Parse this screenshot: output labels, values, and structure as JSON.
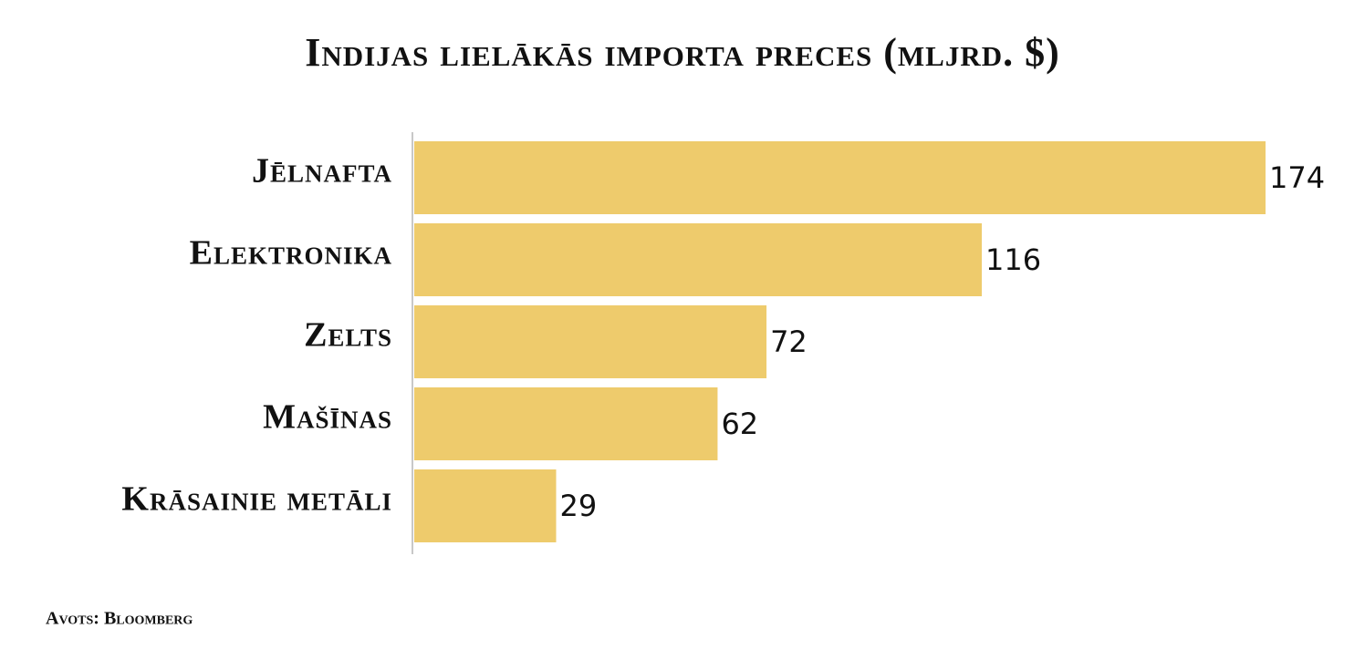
{
  "chart_data": {
    "type": "bar",
    "orientation": "horizontal",
    "title": "Indijas lielākās importa preces (mljrd. $)",
    "categories": [
      "Jēlnafta",
      "Elektronika",
      "Zelts",
      "Mašīnas",
      "Krāsainie metāli"
    ],
    "values": [
      174,
      116,
      72,
      62,
      29
    ],
    "color": "#eecb6c",
    "source": "Avots: Bloomberg"
  }
}
